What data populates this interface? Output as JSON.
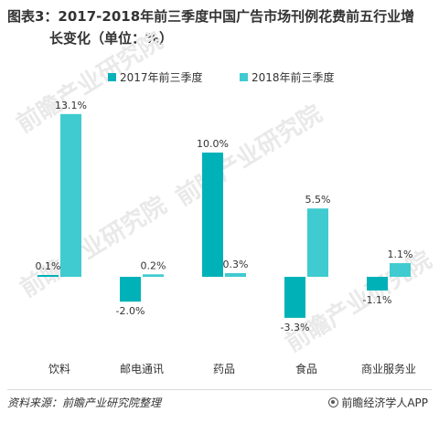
{
  "header": {
    "title_line1": "图表3：2017-2018年前三季度中国广告市场刊例花费前五行业增",
    "title_line2": "长变化（单位：%）"
  },
  "watermark": {
    "text": "前瞻产业研究院"
  },
  "chart_data": {
    "type": "bar",
    "categories": [
      "饮料",
      "邮电通讯",
      "药品",
      "食品",
      "商业服务业"
    ],
    "series": [
      {
        "name": "2017年前三季度",
        "color": "#00b2b8",
        "values": [
          0.1,
          -2.0,
          10.0,
          -3.3,
          -1.1
        ],
        "labels": [
          "0.1%",
          "-2.0%",
          "10.0%",
          "-3.3%",
          "-1.1%"
        ]
      },
      {
        "name": "2018年前三季度",
        "color": "#3fcbd0",
        "values": [
          13.1,
          0.2,
          0.3,
          5.5,
          1.1
        ],
        "labels": [
          "13.1%",
          "0.2%",
          "0.3%",
          "5.5%",
          "1.1%"
        ]
      }
    ],
    "ylim": [
      -3.3,
      13.1
    ],
    "legend_position": "top-center",
    "grid": false
  },
  "footer": {
    "source": "资料来源：前瞻产业研究院整理",
    "credit": "前瞻经济学人APP",
    "credit_icon": "target-icon"
  }
}
